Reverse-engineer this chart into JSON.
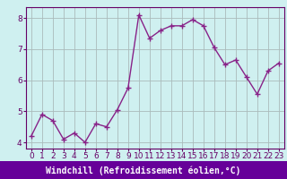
{
  "x": [
    0,
    1,
    2,
    3,
    4,
    5,
    6,
    7,
    8,
    9,
    10,
    11,
    12,
    13,
    14,
    15,
    16,
    17,
    18,
    19,
    20,
    21,
    22,
    23
  ],
  "y": [
    4.2,
    4.9,
    4.7,
    4.1,
    4.3,
    4.0,
    4.6,
    4.5,
    5.05,
    5.75,
    8.1,
    7.35,
    7.6,
    7.75,
    7.75,
    7.95,
    7.75,
    7.05,
    6.5,
    6.65,
    6.1,
    5.55,
    6.3,
    6.55
  ],
  "line_color": "#882288",
  "marker": "+",
  "marker_size": 4,
  "bg_color": "#cff0f0",
  "grid_color": "#aabbbb",
  "xlabel": "Windchill (Refroidissement éolien,°C)",
  "ylim": [
    3.8,
    8.35
  ],
  "xlim": [
    -0.5,
    23.5
  ],
  "yticks": [
    4,
    5,
    6,
    7,
    8
  ],
  "xticks": [
    0,
    1,
    2,
    3,
    4,
    5,
    6,
    7,
    8,
    9,
    10,
    11,
    12,
    13,
    14,
    15,
    16,
    17,
    18,
    19,
    20,
    21,
    22,
    23
  ],
  "xlabel_fontsize": 7,
  "tick_fontsize": 6.5,
  "line_width": 1.0,
  "label_color": "#660066",
  "bottom_bar_color": "#660099",
  "bottom_bar_height": 0.1
}
